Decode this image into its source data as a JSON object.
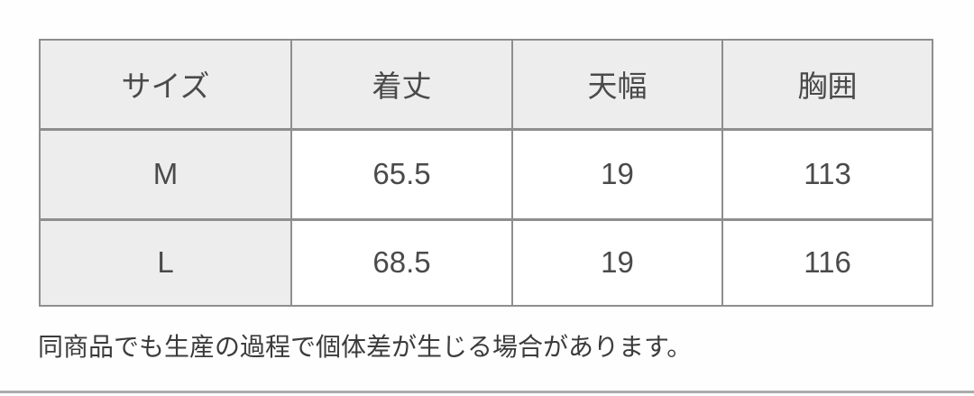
{
  "size_table": {
    "headers": [
      "サイズ",
      "着丈",
      "天幅",
      "胸囲"
    ],
    "rows": [
      {
        "label": "M",
        "values": [
          "65.5",
          "19",
          "113"
        ]
      },
      {
        "label": "L",
        "values": [
          "68.5",
          "19",
          "116"
        ]
      }
    ]
  },
  "note": {
    "text": "同商品でも生産の過程で個体差が生じる場合があります。"
  },
  "colors": {
    "shaded_cell_bg": "#ededed",
    "table_border": "#8e8e8e",
    "table_text": "#4a4a4a",
    "note_text": "#3b3b3b",
    "bottom_rule": "#ababab",
    "page_bg": "#fefefe"
  }
}
